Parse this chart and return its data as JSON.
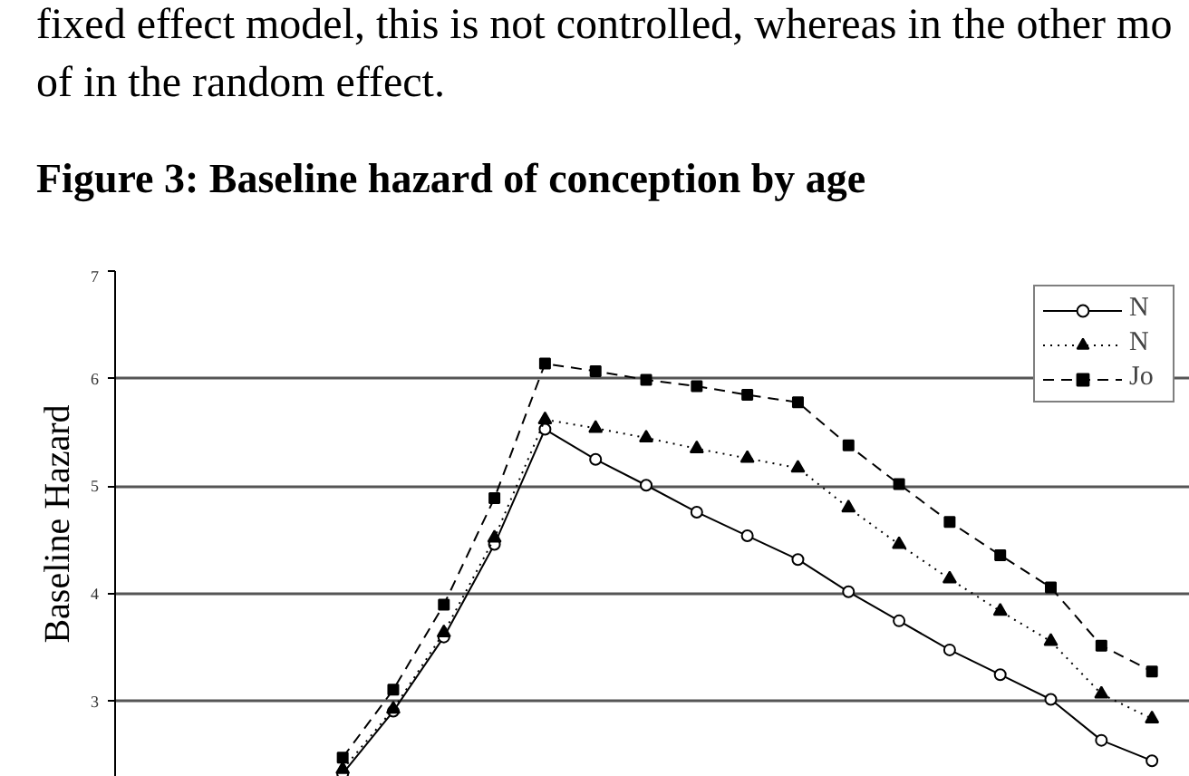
{
  "chart_data": {
    "type": "line",
    "annotations": [
      "fixed effect model, this is not controlled, whereas in the other mo",
      "of in the random effect."
    ],
    "title": "Figure 3: Baseline hazard of conception by age",
    "ylabel": "Baseline Hazard",
    "categories": [
      null,
      null,
      null,
      null,
      null,
      null,
      null,
      null,
      null,
      null,
      null,
      null,
      null,
      null,
      null,
      null,
      null,
      null,
      null,
      null,
      null
    ],
    "ylim": [
      2.3,
      7
    ],
    "yticks": [
      3,
      4,
      5,
      6,
      7
    ],
    "grid": "y",
    "legend": "top right",
    "tick_labels": "y",
    "series": [
      {
        "name": "N",
        "color": "#000000",
        "marker": "circle",
        "line_style": "solid",
        "values": [
          null,
          null,
          null,
          null,
          2.33,
          2.91,
          3.6,
          4.46,
          5.53,
          5.25,
          5.01,
          4.76,
          4.54,
          4.32,
          4.02,
          3.75,
          3.48,
          3.25,
          3.02,
          2.64,
          2.45
        ]
      },
      {
        "name": "N",
        "color": "#000000",
        "marker": "triangle",
        "line_style": "dotted",
        "values": [
          null,
          null,
          null,
          null,
          2.37,
          2.93,
          3.64,
          4.52,
          5.62,
          5.54,
          5.45,
          5.35,
          5.26,
          5.17,
          4.8,
          4.46,
          4.14,
          3.84,
          3.56,
          3.07,
          2.84
        ]
      },
      {
        "name": "Jo",
        "color": "#000000",
        "marker": "square",
        "line_style": "dashed",
        "values": [
          null,
          null,
          null,
          null,
          2.48,
          3.11,
          3.9,
          4.89,
          6.14,
          6.07,
          5.99,
          5.93,
          5.85,
          5.78,
          5.38,
          5.02,
          4.67,
          4.36,
          4.06,
          3.52,
          3.28
        ]
      }
    ]
  }
}
